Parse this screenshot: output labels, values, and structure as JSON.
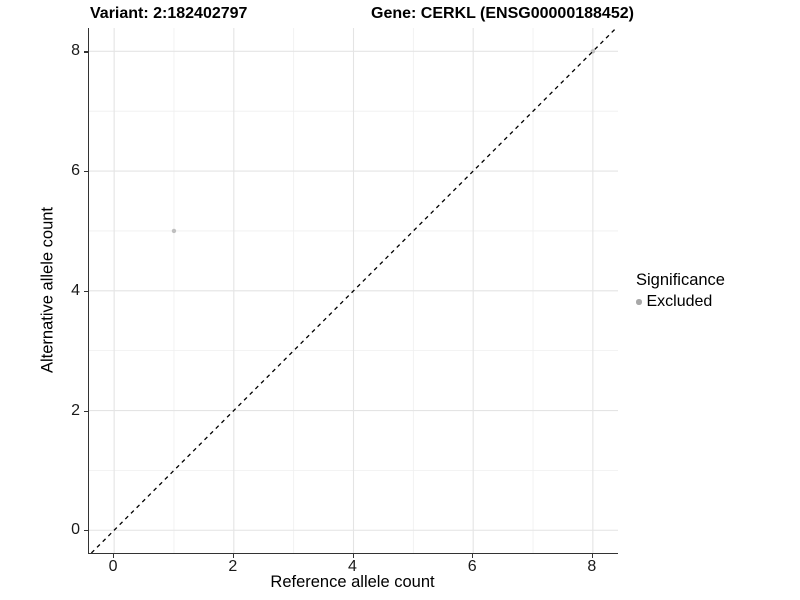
{
  "titles": {
    "variant": "Variant: 2:182402797",
    "gene": "Gene: CERKL (ENSG00000188452)"
  },
  "chart_data": {
    "type": "scatter",
    "title_left": "Variant: 2:182402797",
    "title_right": "Gene: CERKL (ENSG00000188452)",
    "xlabel": "Reference allele count",
    "ylabel": "Alternative allele count",
    "x_ticks": [
      0,
      2,
      4,
      6,
      8
    ],
    "y_ticks": [
      0,
      2,
      4,
      6,
      8
    ],
    "x_minor": [
      1,
      3,
      5,
      7
    ],
    "y_minor": [
      1,
      3,
      5,
      7
    ],
    "xlim": [
      -0.42,
      8.42
    ],
    "ylim": [
      -0.38,
      8.39
    ],
    "grid": "major-and-minor",
    "grid_major_color": "#e4e4e4",
    "grid_minor_color": "#efefef",
    "axis_line_color": "#333333",
    "identity_line": {
      "slope": 1,
      "intercept": 0,
      "style": "dashed",
      "color": "#000000"
    },
    "series": [
      {
        "name": "Excluded",
        "color": "#bfbfbf",
        "points": [
          {
            "x": 1,
            "y": 5
          },
          {
            "x": 8,
            "y": 8
          }
        ]
      }
    ],
    "legend": {
      "title": "Significance",
      "position": "right",
      "items": [
        {
          "label": "Excluded",
          "color": "#a8a8a8"
        }
      ]
    }
  }
}
